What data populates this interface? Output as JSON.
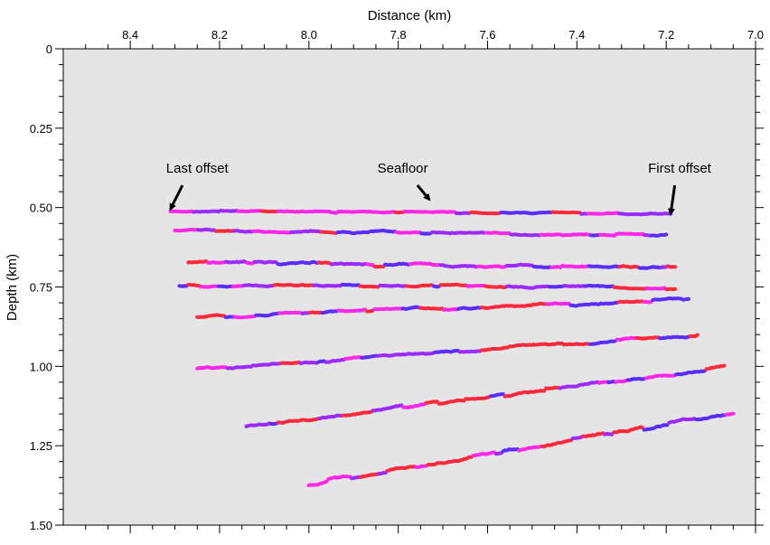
{
  "chart_data": {
    "type": "scatter",
    "title": "",
    "xlabel": "Distance (km)",
    "ylabel": "Depth (km)",
    "xlim": [
      8.55,
      7.0
    ],
    "ylim": [
      0,
      1.5
    ],
    "x_axis_position": "top",
    "x_reversed": true,
    "y_inverted": true,
    "grid": false,
    "background_color": "#e5e5e5",
    "x_ticks": [
      {
        "value": 8.4,
        "label": "8.4"
      },
      {
        "value": 8.2,
        "label": "8.2"
      },
      {
        "value": 8.0,
        "label": "8.0"
      },
      {
        "value": 7.8,
        "label": "7.8"
      },
      {
        "value": 7.6,
        "label": "7.6"
      },
      {
        "value": 7.4,
        "label": "7.4"
      },
      {
        "value": 7.2,
        "label": "7.2"
      },
      {
        "value": 7.0,
        "label": "7.0"
      }
    ],
    "y_ticks": [
      {
        "value": 0,
        "label": "0"
      },
      {
        "value": 0.25,
        "label": "0.25"
      },
      {
        "value": 0.5,
        "label": "0.50"
      },
      {
        "value": 0.75,
        "label": "0.75"
      },
      {
        "value": 1.0,
        "label": "1.00"
      },
      {
        "value": 1.25,
        "label": "1.25"
      },
      {
        "value": 1.5,
        "label": "1.50"
      }
    ],
    "marker_colors": [
      "#ff2a3c",
      "#ff28e6",
      "#5a2eff",
      "#9b2bff"
    ],
    "series": [
      {
        "x_start": 8.31,
        "x_end": 7.19,
        "y_start": 0.51,
        "y_end": 0.52,
        "noise": 0.004
      },
      {
        "x_start": 8.3,
        "x_end": 7.2,
        "y_start": 0.575,
        "y_end": 0.585,
        "noise": 0.005
      },
      {
        "x_start": 8.27,
        "x_end": 7.18,
        "y_start": 0.675,
        "y_end": 0.69,
        "noise": 0.007
      },
      {
        "x_start": 8.29,
        "x_end": 7.18,
        "y_start": 0.745,
        "y_end": 0.752,
        "noise": 0.005
      },
      {
        "x_start": 8.25,
        "x_end": 7.15,
        "y_start": 0.845,
        "y_end": 0.79,
        "noise": 0.006
      },
      {
        "x_start": 8.25,
        "x_end": 7.13,
        "y_start": 1.01,
        "y_end": 0.9,
        "noise": 0.006
      },
      {
        "x_start": 8.14,
        "x_end": 7.07,
        "y_start": 1.19,
        "y_end": 1.0,
        "noise": 0.007
      },
      {
        "x_start": 8.0,
        "x_end": 7.05,
        "y_start": 1.37,
        "y_end": 1.145,
        "noise": 0.008
      }
    ],
    "annotations": [
      {
        "text": "Last offset",
        "x": 8.25,
        "y": 0.39,
        "arrow_to_x": 8.31,
        "arrow_to_y": 0.505
      },
      {
        "text": "Seafloor",
        "x": 7.79,
        "y": 0.39,
        "arrow_to_x": 7.73,
        "arrow_to_y": 0.475
      },
      {
        "text": "First offset",
        "x": 7.17,
        "y": 0.39,
        "arrow_to_x": 7.19,
        "arrow_to_y": 0.52
      }
    ]
  }
}
